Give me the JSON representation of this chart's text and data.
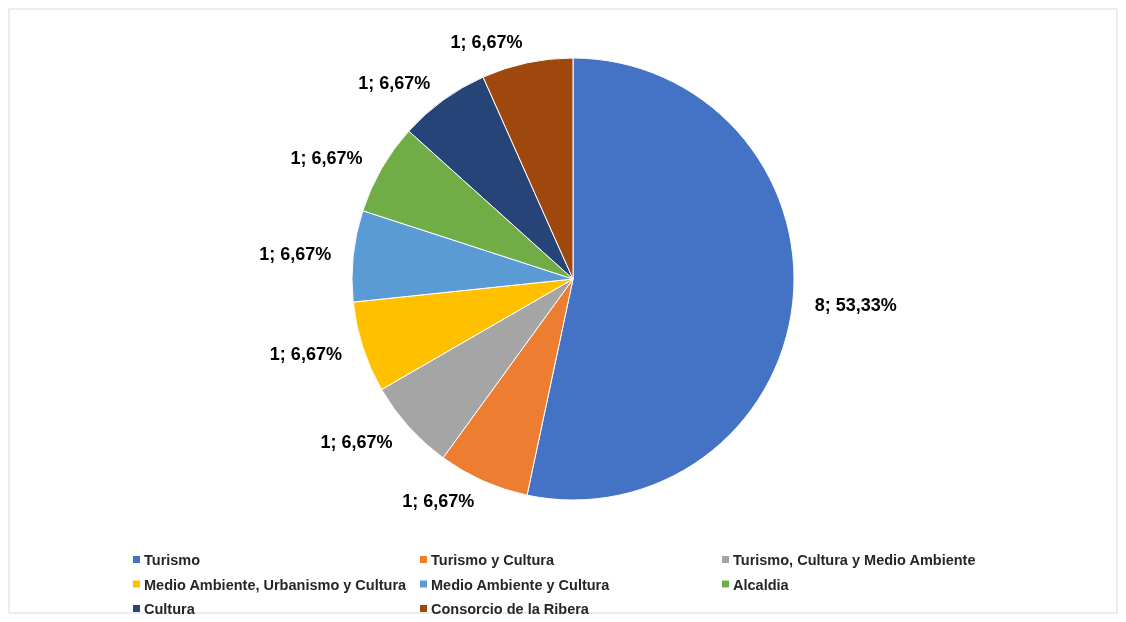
{
  "chart_data": {
    "type": "pie",
    "categories": [
      "Turismo",
      "Turismo y Cultura",
      "Turismo, Cultura y Medio Ambiente",
      "Medio Ambiente, Urbanismo y Cultura",
      "Medio Ambiente y Cultura",
      "Alcaldia",
      "Cultura",
      "Consorcio de la Ribera"
    ],
    "values": [
      8,
      1,
      1,
      1,
      1,
      1,
      1,
      1
    ],
    "value_labels": [
      "8; 53,33%",
      "1; 6,67%",
      "1; 6,67%",
      "1; 6,67%",
      "1; 6,67%",
      "1; 6,67%",
      "1; 6,67%",
      "1; 6,67%"
    ],
    "colors": [
      "#4472c4",
      "#ed7d31",
      "#a5a5a5",
      "#ffc000",
      "#5b9bd5",
      "#70ad47",
      "#264478",
      "#9e480e"
    ],
    "legend": "bottom"
  }
}
